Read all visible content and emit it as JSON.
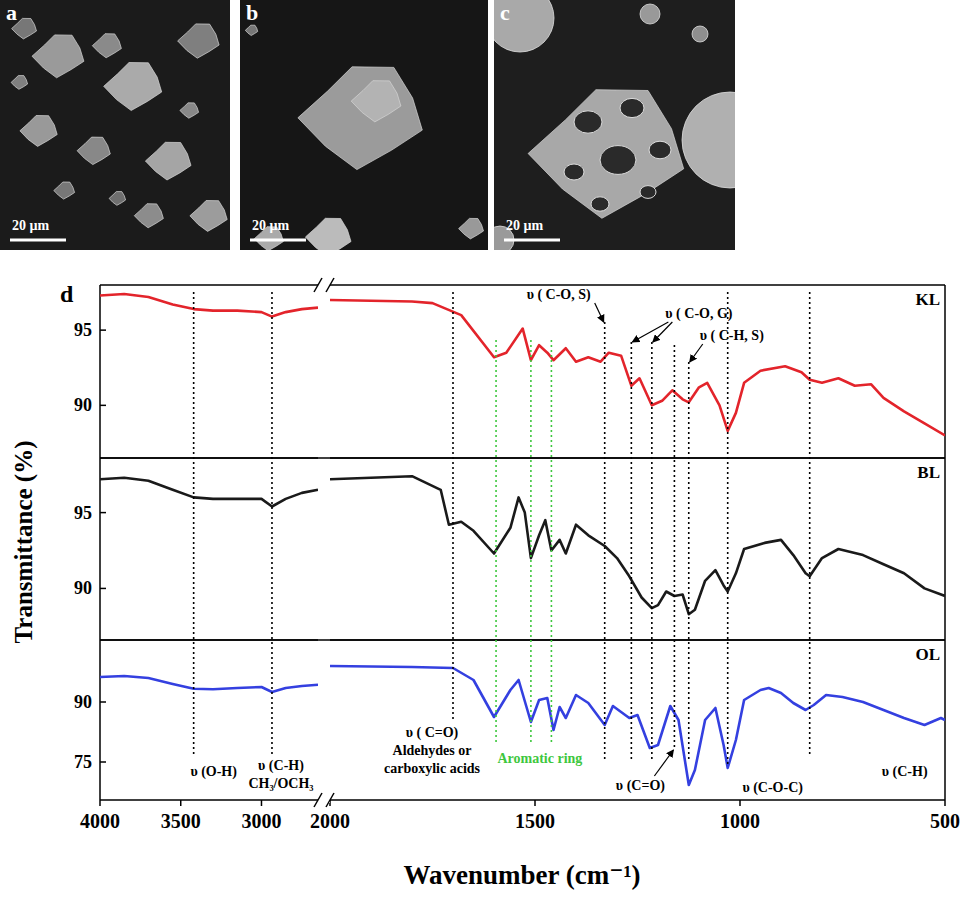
{
  "images": [
    {
      "label": "a",
      "scale_bar": "20 µm"
    },
    {
      "label": "b",
      "scale_bar": "20 µm"
    },
    {
      "label": "c",
      "scale_bar": "20 µm"
    }
  ],
  "figure": {
    "label": "d",
    "reference_lines": [
      {
        "x": 3420,
        "color": "#000000"
      },
      {
        "x": 2935,
        "color": "#000000"
      },
      {
        "x": 1700,
        "color": "#000000"
      },
      {
        "x": 1330,
        "color": "#000000"
      },
      {
        "x": 1265,
        "color": "#000000"
      },
      {
        "x": 1215,
        "color": "#000000"
      },
      {
        "x": 1160,
        "color": "#000000"
      },
      {
        "x": 1125,
        "color": "#000000"
      },
      {
        "x": 1030,
        "color": "#000000"
      },
      {
        "x": 830,
        "color": "#000000"
      },
      {
        "x": 1595,
        "color": "#3ec73e"
      },
      {
        "x": 1510,
        "color": "#3ec73e"
      },
      {
        "x": 1460,
        "color": "#3ec73e"
      }
    ],
    "annotations": [
      {
        "text": "υ (O-H)",
        "x": [
          3420
        ]
      },
      {
        "text": [
          "υ (C-H)",
          "CH₃/OCH₃"
        ],
        "x": [
          2935
        ]
      },
      {
        "text": [
          "υ ( C=O)",
          "Aldehydes or",
          "carboxylic acids"
        ],
        "x": [
          1700
        ]
      },
      {
        "text": "Aromatic ring",
        "x": [
          1510
        ],
        "color": "#3ec73e"
      },
      {
        "text": "υ ( C-O, S)",
        "x": [
          1330
        ]
      },
      {
        "text": "υ ( C-O, G)",
        "x": [
          1265,
          1215
        ]
      },
      {
        "text": "υ ( C-H, S)",
        "x": [
          1125
        ]
      },
      {
        "text": "υ (C=O)",
        "x": [
          1160
        ]
      },
      {
        "text": "υ (C-O-C)",
        "x": [
          1030
        ]
      },
      {
        "text": "υ (C-H)",
        "x": [
          830
        ]
      }
    ]
  },
  "chart_data": [
    {
      "type": "line",
      "xlim": [
        4000,
        500
      ],
      "x_break": [
        2650,
        2000
      ],
      "xticks": [
        4000,
        3500,
        3000,
        2000,
        1500,
        1000,
        500
      ],
      "ylim": [
        86.5,
        98
      ],
      "yticks": [
        90,
        95
      ],
      "tick_labels": "y",
      "x": [
        4000,
        3850,
        3700,
        3550,
        3420,
        3300,
        3150,
        3000,
        2935,
        2850,
        2750,
        2650,
        2000,
        1800,
        1750,
        1680,
        1600,
        1570,
        1530,
        1510,
        1490,
        1470,
        1455,
        1425,
        1400,
        1370,
        1340,
        1320,
        1290,
        1265,
        1245,
        1215,
        1190,
        1165,
        1140,
        1125,
        1100,
        1080,
        1050,
        1030,
        1010,
        990,
        950,
        890,
        850,
        830,
        800,
        760,
        720,
        680,
        650,
        600,
        550,
        500
      ],
      "series": [
        {
          "name": "KL",
          "color": "#e3242b",
          "values": [
            97.3,
            97.4,
            97.2,
            96.7,
            96.4,
            96.3,
            96.3,
            96.2,
            95.9,
            96.2,
            96.4,
            96.5,
            97.0,
            96.9,
            96.8,
            96.0,
            93.2,
            93.5,
            95.1,
            93.0,
            94.0,
            93.5,
            93.0,
            93.8,
            92.9,
            93.2,
            92.9,
            93.5,
            93.3,
            91.3,
            91.8,
            90.0,
            90.3,
            91.0,
            90.4,
            90.2,
            91.2,
            91.5,
            90.0,
            88.3,
            89.5,
            91.5,
            92.3,
            92.6,
            92.2,
            91.7,
            91.5,
            91.8,
            91.3,
            91.4,
            90.5,
            89.6,
            88.8,
            88.0
          ]
        }
      ]
    },
    {
      "type": "line",
      "xlim": [
        4000,
        500
      ],
      "x_break": [
        2650,
        2000
      ],
      "xticks": [
        4000,
        3500,
        3000,
        2000,
        1500,
        1000,
        500
      ],
      "ylim": [
        86.6,
        98.6
      ],
      "yticks": [
        90,
        95
      ],
      "tick_labels": "y",
      "y_label": "Transmittance (%)",
      "x": [
        4000,
        3850,
        3700,
        3550,
        3420,
        3300,
        3150,
        3000,
        2935,
        2850,
        2750,
        2650,
        2000,
        1800,
        1730,
        1710,
        1680,
        1650,
        1600,
        1560,
        1540,
        1525,
        1510,
        1490,
        1475,
        1460,
        1440,
        1425,
        1400,
        1370,
        1330,
        1300,
        1270,
        1240,
        1215,
        1200,
        1180,
        1160,
        1140,
        1125,
        1110,
        1085,
        1060,
        1040,
        1030,
        1010,
        990,
        940,
        900,
        870,
        840,
        830,
        800,
        760,
        700,
        650,
        600,
        550,
        500
      ],
      "series": [
        {
          "name": "BL",
          "color": "#1a1a1a",
          "values": [
            97.2,
            97.3,
            97.1,
            96.5,
            96.0,
            95.9,
            95.9,
            95.9,
            95.4,
            95.9,
            96.3,
            96.5,
            97.2,
            97.4,
            96.5,
            94.2,
            94.4,
            93.8,
            92.3,
            94.0,
            96.0,
            95.0,
            92.0,
            93.5,
            94.5,
            92.5,
            93.2,
            92.3,
            94.2,
            93.5,
            92.8,
            92.0,
            90.8,
            89.4,
            88.7,
            88.9,
            89.8,
            89.5,
            89.6,
            88.3,
            88.6,
            90.5,
            91.2,
            90.2,
            89.8,
            91.0,
            92.6,
            93.0,
            93.2,
            92.2,
            91.0,
            90.8,
            92.0,
            92.6,
            92.2,
            91.6,
            91.0,
            90.0,
            89.5
          ]
        }
      ]
    },
    {
      "type": "line",
      "xlim": [
        4000,
        500
      ],
      "x_break": [
        2650,
        2000
      ],
      "xticks": [
        4000,
        3500,
        3000,
        2000,
        1500,
        1000,
        500
      ],
      "ylim": [
        65.5,
        105.5
      ],
      "yticks": [
        75,
        90
      ],
      "x_label": "Wavenumber (cm⁻¹)",
      "x": [
        4000,
        3850,
        3700,
        3550,
        3420,
        3300,
        3150,
        3000,
        2935,
        2850,
        2750,
        2650,
        2000,
        1800,
        1700,
        1650,
        1600,
        1560,
        1540,
        1510,
        1490,
        1470,
        1455,
        1440,
        1425,
        1400,
        1370,
        1330,
        1310,
        1270,
        1250,
        1220,
        1200,
        1170,
        1150,
        1125,
        1110,
        1085,
        1060,
        1040,
        1030,
        1010,
        990,
        950,
        930,
        900,
        870,
        840,
        820,
        790,
        750,
        700,
        650,
        600,
        550,
        510,
        500
      ],
      "series": [
        {
          "name": "OL",
          "color": "#3440e0",
          "values": [
            96.25,
            96.5,
            96.0,
            94.5,
            93.3,
            93.2,
            93.5,
            93.75,
            92.5,
            93.5,
            94.0,
            94.3,
            99,
            98.75,
            98.5,
            95.5,
            86.25,
            93,
            95.5,
            85,
            90.5,
            91,
            83,
            88.75,
            86,
            91.75,
            89.75,
            84.25,
            89,
            86,
            86.75,
            78.5,
            79.25,
            89,
            85.5,
            69.25,
            73,
            85.5,
            88.5,
            79.25,
            73.5,
            80.5,
            90.5,
            93,
            93.5,
            92.25,
            89.75,
            88,
            89.25,
            91.75,
            91.25,
            90,
            88,
            86,
            84.25,
            86,
            85.5
          ]
        }
      ]
    }
  ]
}
